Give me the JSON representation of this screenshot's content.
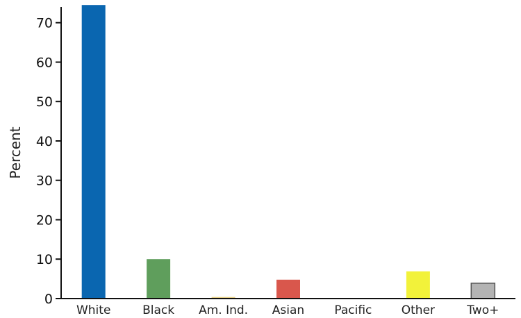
{
  "chart_data": {
    "type": "bar",
    "title": "",
    "xlabel": "",
    "ylabel": "Percent",
    "ylim": [
      0,
      74
    ],
    "yticks": [
      0,
      10,
      20,
      30,
      40,
      50,
      60,
      70
    ],
    "grid": false,
    "legend": "none",
    "categories": [
      "White",
      "Black",
      "Am. Ind.",
      "Asian",
      "Pacific",
      "Other",
      "Two+"
    ],
    "values": [
      74.5,
      10.0,
      0.4,
      4.8,
      0.1,
      6.9,
      3.9
    ],
    "colors": [
      "#0a66b0",
      "#5f9e5c",
      "#e8d18a",
      "#d9574c",
      "#8aa0b8",
      "#f2f23a",
      "#b4b4b4"
    ]
  }
}
